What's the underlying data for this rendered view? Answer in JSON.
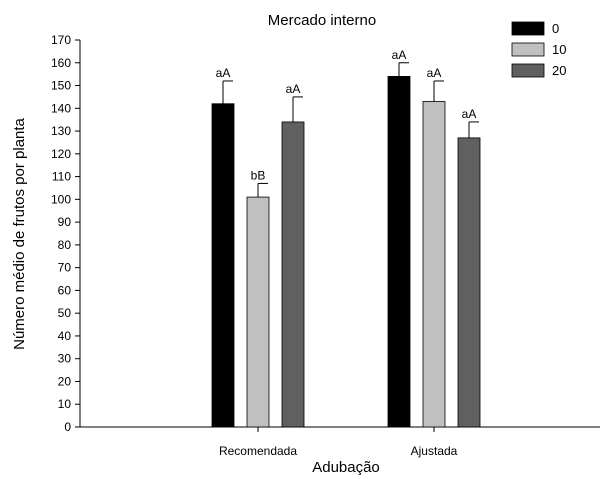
{
  "chart_data": {
    "type": "bar",
    "title": "Mercado interno",
    "xlabel": "Adubação",
    "ylabel": "Número médio de frutos por planta",
    "ylim": [
      0,
      170
    ],
    "yticks": [
      0,
      10,
      20,
      30,
      40,
      50,
      60,
      70,
      80,
      90,
      100,
      110,
      120,
      130,
      140,
      150,
      160,
      170
    ],
    "categories": [
      "Recomendada",
      "Ajustada"
    ],
    "legend_position": "top-right",
    "grid": false,
    "series": [
      {
        "name": "0",
        "color": "#000000",
        "values": [
          142,
          154
        ],
        "errors": [
          10,
          6
        ],
        "labels": [
          "aA",
          "aA"
        ]
      },
      {
        "name": "10",
        "color": "#c0c0c0",
        "values": [
          101,
          143
        ],
        "errors": [
          6,
          9
        ],
        "labels": [
          "bB",
          "aA"
        ]
      },
      {
        "name": "20",
        "color": "#606060",
        "values": [
          134,
          127
        ],
        "errors": [
          11,
          7
        ],
        "labels": [
          "aA",
          "aA"
        ]
      }
    ]
  }
}
